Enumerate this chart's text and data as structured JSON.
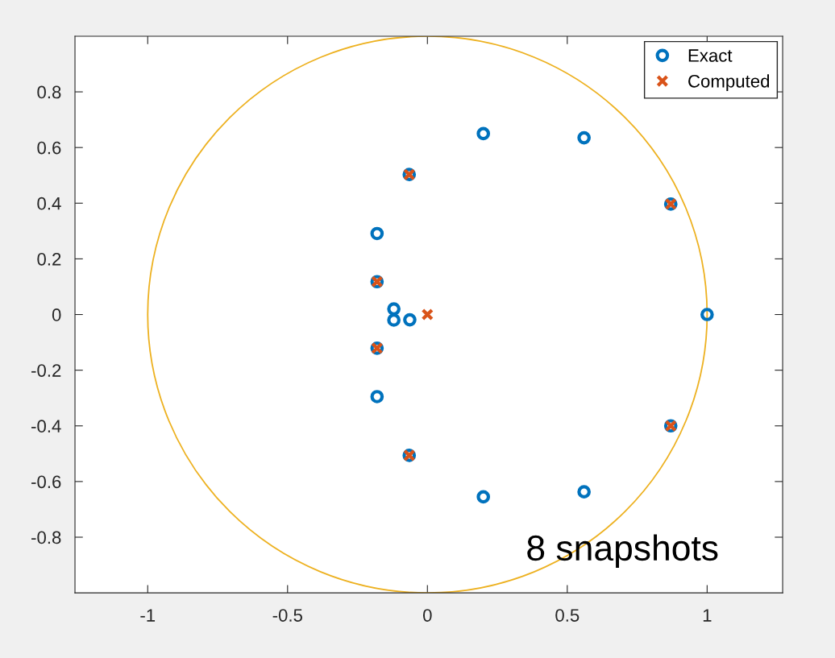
{
  "chart_data": {
    "type": "scatter",
    "series": [
      {
        "name": "Exact",
        "marker": "circle",
        "color": "#0072bd",
        "x": [
          0.2,
          0.56,
          -0.065,
          0.87,
          -0.18,
          -0.18,
          -0.12,
          -0.12,
          -0.063,
          1.0,
          -0.18,
          -0.18,
          0.87,
          -0.065,
          0.2,
          0.56
        ],
        "values": [
          0.65,
          0.635,
          0.503,
          0.397,
          0.291,
          0.118,
          0.02,
          -0.02,
          -0.019,
          0,
          -0.121,
          -0.295,
          -0.4,
          -0.506,
          -0.655,
          -0.637
        ]
      },
      {
        "name": "Computed",
        "marker": "cross",
        "color": "#d95319",
        "x": [
          -0.065,
          0.87,
          -0.18,
          0,
          -0.18,
          0.87,
          -0.065
        ],
        "values": [
          0.503,
          0.397,
          0.118,
          0,
          -0.121,
          -0.4,
          -0.506
        ]
      }
    ],
    "xlim": [
      -1.26,
      1.27
    ],
    "ylim": [
      -1,
      1
    ],
    "xticks": [
      -1,
      -0.5,
      0,
      0.5,
      1
    ],
    "yticks": [
      -0.8,
      -0.6,
      -0.4,
      -0.2,
      0,
      0.2,
      0.4,
      0.6,
      0.8
    ],
    "grid": false,
    "legend": "top right",
    "annotations": [
      "8 snapshots"
    ]
  }
}
